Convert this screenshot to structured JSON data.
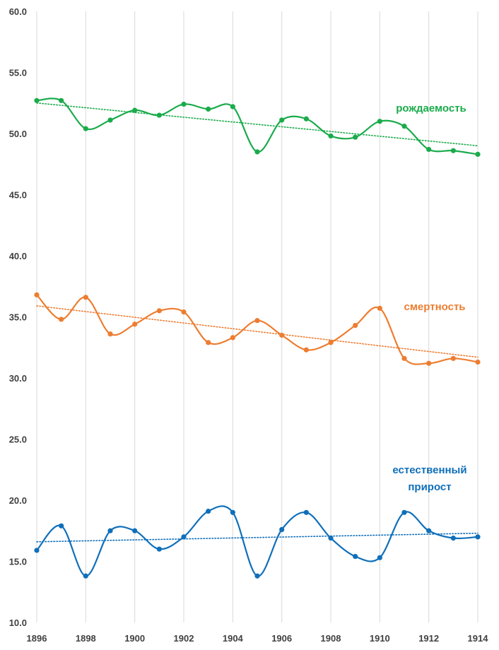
{
  "chart_data": {
    "type": "line",
    "title": "",
    "xlabel": "",
    "ylabel": "",
    "x": [
      1896,
      1897,
      1898,
      1899,
      1900,
      1901,
      1902,
      1903,
      1904,
      1905,
      1906,
      1907,
      1908,
      1909,
      1910,
      1911,
      1912,
      1913,
      1914
    ],
    "x_ticks": [
      "1896",
      "1898",
      "1900",
      "1902",
      "1904",
      "1906",
      "1908",
      "1910",
      "1912",
      "1914"
    ],
    "y_ticks": [
      "10.0",
      "15.0",
      "20.0",
      "25.0",
      "30.0",
      "35.0",
      "40.0",
      "45.0",
      "50.0",
      "55.0",
      "60.0"
    ],
    "ylim": [
      10,
      60
    ],
    "xlim": [
      1896,
      1914
    ],
    "grid": "vertical",
    "series": [
      {
        "name": "рождаемость",
        "color": "#1aab4b",
        "values": [
          52.7,
          52.7,
          50.4,
          51.1,
          51.9,
          51.5,
          52.4,
          52.0,
          52.2,
          48.5,
          51.1,
          51.2,
          49.8,
          49.7,
          51.0,
          50.6,
          48.7,
          48.6,
          48.3
        ],
        "trend": [
          52.5,
          49.0
        ]
      },
      {
        "name": "смертность",
        "color": "#ed7d31",
        "values": [
          36.8,
          34.8,
          36.6,
          33.6,
          34.4,
          35.5,
          35.4,
          32.9,
          33.3,
          34.7,
          33.5,
          32.3,
          32.9,
          34.3,
          35.7,
          31.6,
          31.2,
          31.6,
          31.3
        ],
        "trend": [
          35.9,
          31.7
        ]
      },
      {
        "name_lines": [
          "естественный",
          "прирост"
        ],
        "color": "#0f6fba",
        "values": [
          15.9,
          17.9,
          13.8,
          17.5,
          17.5,
          16.0,
          17.0,
          19.1,
          19.0,
          13.8,
          17.6,
          19.0,
          16.9,
          15.4,
          15.3,
          19.0,
          17.5,
          16.9,
          17.0
        ],
        "trend": [
          16.6,
          17.3
        ]
      }
    ]
  }
}
